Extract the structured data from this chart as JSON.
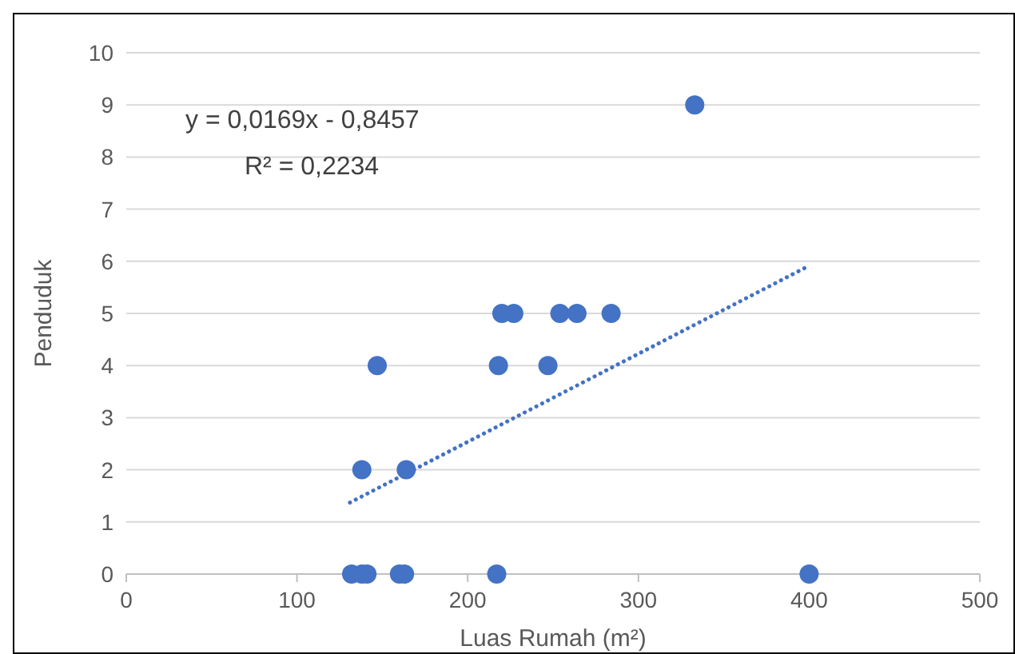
{
  "chart_data": {
    "type": "scatter",
    "xlabel": "Luas Rumah (m²)",
    "ylabel": "Penduduk",
    "xlim": [
      0,
      500
    ],
    "xticks": [
      0,
      100,
      200,
      300,
      400,
      500
    ],
    "ylim": [
      0,
      10
    ],
    "yticks": [
      0,
      1,
      2,
      3,
      4,
      5,
      6,
      7,
      8,
      9,
      10
    ],
    "grid": "y",
    "annotations": [
      "y = 0,0169x - 0,8457",
      "R² = 0,2234"
    ],
    "series": [
      {
        "marker": "circle",
        "color": "#4472c4",
        "x": [
          333,
          220,
          227,
          254,
          264,
          284,
          147,
          218,
          247,
          138,
          164,
          132,
          138,
          141,
          160,
          163,
          217,
          400
        ],
        "values": [
          9,
          5,
          5,
          5,
          5,
          5,
          4,
          4,
          4,
          2,
          2,
          0,
          0,
          0,
          0,
          0,
          0,
          0
        ]
      },
      {
        "type": "line",
        "color": "#4472c4",
        "line_style": "dotted",
        "x": [
          131,
          398
        ],
        "values": [
          1.37,
          5.88
        ]
      }
    ]
  }
}
